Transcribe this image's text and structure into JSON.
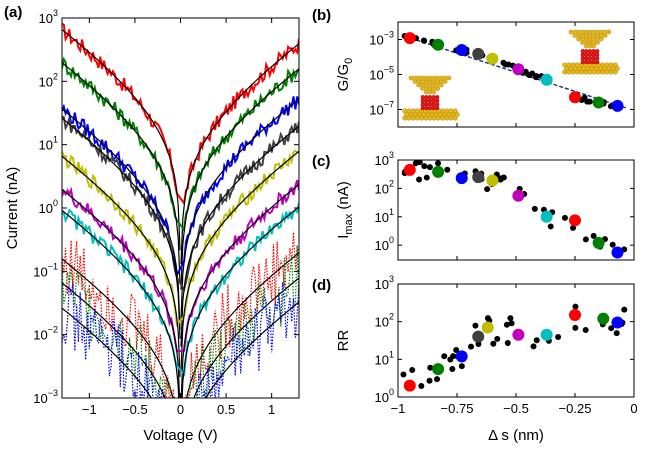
{
  "figure": {
    "panels": [
      {
        "id": "a",
        "label": "(a)"
      },
      {
        "id": "b",
        "label": "(b)"
      },
      {
        "id": "c",
        "label": "(c)"
      },
      {
        "id": "d",
        "label": "(d)"
      }
    ]
  },
  "chart_data": [
    {
      "id": "a",
      "type": "line",
      "title": "",
      "xlabel": "Voltage (V)",
      "ylabel": "Current (nA)",
      "xlim": [
        -1.3,
        1.3
      ],
      "ylim": [
        0.001,
        1000
      ],
      "yscale": "log",
      "xticks": [
        -1,
        -0.5,
        0,
        0.5,
        1
      ],
      "xtick_labels": [
        "−1",
        "−0.5",
        "0",
        "0.5",
        "1"
      ],
      "yticks": [
        0.001,
        0.01,
        0.1,
        1,
        10,
        100,
        1000
      ],
      "ytick_labels": [
        {
          "base": "10",
          "exp": "−3"
        },
        {
          "base": "10",
          "exp": "−2"
        },
        {
          "base": "10",
          "exp": "−1"
        },
        {
          "base": "10",
          "exp": "0"
        },
        {
          "base": "10",
          "exp": "1"
        },
        {
          "base": "10",
          "exp": "2"
        },
        {
          "base": "10",
          "exp": "3"
        }
      ],
      "series": [
        {
          "color": "#ff0000",
          "values_at_minus_1_2V": 500,
          "values_at_plus_1_2V": 300
        },
        {
          "color": "#008000",
          "values_at_minus_1_2V": 150,
          "values_at_plus_1_2V": 120
        },
        {
          "color": "#0000ff",
          "values_at_minus_1_2V": 28,
          "values_at_plus_1_2V": 40
        },
        {
          "color": "#404040",
          "values_at_minus_1_2V": 20,
          "values_at_plus_1_2V": 15
        },
        {
          "color": "#bfbf00",
          "values_at_minus_1_2V": 5,
          "values_at_plus_1_2V": 6
        },
        {
          "color": "#bf00bf",
          "values_at_minus_1_2V": 1.5,
          "values_at_plus_1_2V": 1.8
        },
        {
          "color": "#00bfbf",
          "values_at_minus_1_2V": 0.7,
          "values_at_plus_1_2V": 0.8
        },
        {
          "color": "#ff0000",
          "values_at_minus_1_2V": 0.12,
          "values_at_plus_1_2V": 0.15
        },
        {
          "color": "#008000",
          "values_at_minus_1_2V": 0.05,
          "values_at_plus_1_2V": 0.06
        },
        {
          "color": "#0000ff",
          "values_at_minus_1_2V": 0.02,
          "values_at_plus_1_2V": 0.025
        }
      ],
      "grid": false,
      "legend": "none"
    },
    {
      "id": "b",
      "type": "scatter",
      "title": "",
      "xlabel": "",
      "ylabel": "G/G0",
      "xlim": [
        -1.0,
        0.0
      ],
      "ylim": [
        1e-08,
        0.01
      ],
      "yscale": "log",
      "yticks": [
        1e-07,
        1e-05,
        0.001
      ],
      "ytick_labels": [
        {
          "base": "10",
          "exp": "−7"
        },
        {
          "base": "10",
          "exp": "−5"
        },
        {
          "base": "10",
          "exp": "−3"
        }
      ],
      "highlight_points": [
        {
          "x": -0.95,
          "y": 0.0012,
          "color": "#ff0000"
        },
        {
          "x": -0.83,
          "y": 0.0005,
          "color": "#008000"
        },
        {
          "x": -0.73,
          "y": 0.00025,
          "color": "#0000ff"
        },
        {
          "x": -0.66,
          "y": 0.00015,
          "color": "#404040"
        },
        {
          "x": -0.6,
          "y": 8e-05,
          "color": "#bfbf00"
        },
        {
          "x": -0.49,
          "y": 2e-05,
          "color": "#bf00bf"
        },
        {
          "x": -0.37,
          "y": 5e-06,
          "color": "#00bfbf"
        },
        {
          "x": -0.25,
          "y": 5e-07,
          "color": "#ff0000"
        },
        {
          "x": -0.15,
          "y": 2.5e-07,
          "color": "#008000"
        },
        {
          "x": -0.07,
          "y": 1.6e-07,
          "color": "#0000ff"
        }
      ],
      "grid": false,
      "legend": "none"
    },
    {
      "id": "c",
      "type": "scatter",
      "title": "",
      "xlabel": "",
      "ylabel": "Imax (nA)",
      "xlim": [
        -1.0,
        0.0
      ],
      "ylim": [
        0.3,
        1000
      ],
      "yscale": "log",
      "yticks": [
        1,
        10,
        100,
        1000
      ],
      "ytick_labels": [
        {
          "base": "10",
          "exp": "0"
        },
        {
          "base": "10",
          "exp": "1"
        },
        {
          "base": "10",
          "exp": "2"
        },
        {
          "base": "10",
          "exp": "3"
        }
      ],
      "highlight_points": [
        {
          "x": -0.95,
          "y": 450,
          "color": "#ff0000"
        },
        {
          "x": -0.83,
          "y": 380,
          "color": "#008000"
        },
        {
          "x": -0.73,
          "y": 230,
          "color": "#0000ff"
        },
        {
          "x": -0.66,
          "y": 250,
          "color": "#404040"
        },
        {
          "x": -0.6,
          "y": 190,
          "color": "#bfbf00"
        },
        {
          "x": -0.49,
          "y": 55,
          "color": "#bf00bf"
        },
        {
          "x": -0.37,
          "y": 10,
          "color": "#00bfbf"
        },
        {
          "x": -0.25,
          "y": 7.5,
          "color": "#ff0000"
        },
        {
          "x": -0.15,
          "y": 1.2,
          "color": "#008000"
        },
        {
          "x": -0.07,
          "y": 0.55,
          "color": "#0000ff"
        }
      ],
      "grid": false,
      "legend": "none"
    },
    {
      "id": "d",
      "type": "scatter",
      "title": "",
      "xlabel": "Δ s (nm)",
      "ylabel": "RR",
      "xlim": [
        -1.0,
        0.0
      ],
      "ylim": [
        1,
        1000
      ],
      "yscale": "log",
      "xticks": [
        -1,
        -0.75,
        -0.5,
        -0.25,
        0
      ],
      "xtick_labels": [
        "−1",
        "−0.75",
        "−0.5",
        "−0.25",
        "0"
      ],
      "yticks": [
        1,
        10,
        100,
        1000
      ],
      "ytick_labels": [
        {
          "base": "10",
          "exp": "0"
        },
        {
          "base": "10",
          "exp": "1"
        },
        {
          "base": "10",
          "exp": "2"
        },
        {
          "base": "10",
          "exp": "3"
        }
      ],
      "highlight_points": [
        {
          "x": -0.95,
          "y": 2,
          "color": "#ff0000"
        },
        {
          "x": -0.83,
          "y": 5.5,
          "color": "#008000"
        },
        {
          "x": -0.73,
          "y": 12,
          "color": "#0000ff"
        },
        {
          "x": -0.66,
          "y": 40,
          "color": "#404040"
        },
        {
          "x": -0.62,
          "y": 70,
          "color": "#bfbf00"
        },
        {
          "x": -0.49,
          "y": 45,
          "color": "#bf00bf"
        },
        {
          "x": -0.37,
          "y": 45,
          "color": "#00bfbf"
        },
        {
          "x": -0.25,
          "y": 150,
          "color": "#ff0000"
        },
        {
          "x": -0.13,
          "y": 120,
          "color": "#008000"
        },
        {
          "x": -0.07,
          "y": 95,
          "color": "#0000ff"
        }
      ],
      "grid": false,
      "legend": "none"
    }
  ]
}
